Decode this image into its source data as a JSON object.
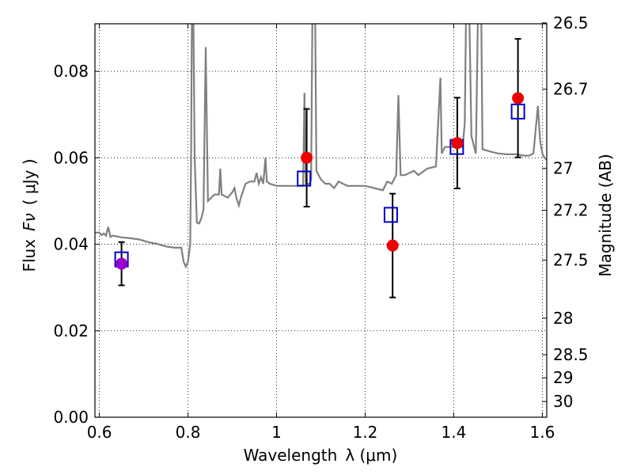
{
  "chart_data": {
    "type": "scatter",
    "xlabel_text": "Wavelength",
    "xlabel_math": "λ (μm)",
    "ylabel_text": "Flux",
    "ylabel_math": "Fν",
    "ylabel_unit": "( μJy )",
    "right_ylabel": "Magnitude (AB)",
    "xlim": [
      0.59,
      1.61
    ],
    "ylim": [
      0.0,
      0.091
    ],
    "grid": true,
    "x_ticks": [
      {
        "value": 0.6,
        "label": "0.6"
      },
      {
        "value": 0.8,
        "label": "0.8"
      },
      {
        "value": 1.0,
        "label": "1"
      },
      {
        "value": 1.2,
        "label": "1.2"
      },
      {
        "value": 1.4,
        "label": "1.4"
      },
      {
        "value": 1.6,
        "label": "1.6"
      }
    ],
    "y_ticks": [
      {
        "value": 0.0,
        "label": "0.00"
      },
      {
        "value": 0.02,
        "label": "0.02"
      },
      {
        "value": 0.04,
        "label": "0.04"
      },
      {
        "value": 0.06,
        "label": "0.06"
      },
      {
        "value": 0.08,
        "label": "0.08"
      }
    ],
    "right_ticks": [
      {
        "value": 26.5,
        "label": "26.5"
      },
      {
        "value": 26.7,
        "label": "26.7"
      },
      {
        "value": 27.0,
        "label": "27"
      },
      {
        "value": 27.2,
        "label": "27.2"
      },
      {
        "value": 27.5,
        "label": "27.5"
      },
      {
        "value": 28.0,
        "label": "28"
      },
      {
        "value": 28.5,
        "label": "28.5"
      },
      {
        "value": 29.0,
        "label": "29"
      },
      {
        "value": 30.0,
        "label": "30"
      }
    ],
    "model_spectrum": {
      "color": "#808080",
      "points": [
        [
          0.59,
          0.0427
        ],
        [
          0.6,
          0.0427
        ],
        [
          0.605,
          0.0421
        ],
        [
          0.61,
          0.0425
        ],
        [
          0.615,
          0.042
        ],
        [
          0.62,
          0.044
        ],
        [
          0.625,
          0.0417
        ],
        [
          0.63,
          0.042
        ],
        [
          0.65,
          0.0416
        ],
        [
          0.67,
          0.0414
        ],
        [
          0.69,
          0.0411
        ],
        [
          0.71,
          0.0405
        ],
        [
          0.73,
          0.0401
        ],
        [
          0.75,
          0.0395
        ],
        [
          0.77,
          0.0392
        ],
        [
          0.785,
          0.0392
        ],
        [
          0.79,
          0.036
        ],
        [
          0.795,
          0.0348
        ],
        [
          0.8,
          0.036
        ],
        [
          0.805,
          0.04
        ],
        [
          0.807,
          0.06
        ],
        [
          0.809,
          0.095
        ],
        [
          0.812,
          0.095
        ],
        [
          0.815,
          0.06
        ],
        [
          0.82,
          0.045
        ],
        [
          0.825,
          0.0448
        ],
        [
          0.83,
          0.046
        ],
        [
          0.835,
          0.048
        ],
        [
          0.84,
          0.0856
        ],
        [
          0.845,
          0.05
        ],
        [
          0.85,
          0.0505
        ],
        [
          0.86,
          0.0515
        ],
        [
          0.87,
          0.0515
        ],
        [
          0.873,
          0.0575
        ],
        [
          0.876,
          0.0515
        ],
        [
          0.89,
          0.0508
        ],
        [
          0.9,
          0.052
        ],
        [
          0.905,
          0.053
        ],
        [
          0.91,
          0.0505
        ],
        [
          0.915,
          0.049
        ],
        [
          0.92,
          0.051
        ],
        [
          0.93,
          0.054
        ],
        [
          0.94,
          0.0545
        ],
        [
          0.95,
          0.0545
        ],
        [
          0.955,
          0.0565
        ],
        [
          0.96,
          0.054
        ],
        [
          0.965,
          0.0555
        ],
        [
          0.97,
          0.054
        ],
        [
          0.975,
          0.06
        ],
        [
          0.978,
          0.0545
        ],
        [
          0.985,
          0.054
        ],
        [
          1.0,
          0.0535
        ],
        [
          1.02,
          0.0535
        ],
        [
          1.04,
          0.0535
        ],
        [
          1.06,
          0.0535
        ],
        [
          1.063,
          0.075
        ],
        [
          1.066,
          0.054
        ],
        [
          1.075,
          0.054
        ],
        [
          1.078,
          0.055
        ],
        [
          1.081,
          0.095
        ],
        [
          1.087,
          0.095
        ],
        [
          1.09,
          0.057
        ],
        [
          1.1,
          0.055
        ],
        [
          1.11,
          0.054
        ],
        [
          1.12,
          0.054
        ],
        [
          1.13,
          0.053
        ],
        [
          1.14,
          0.0545
        ],
        [
          1.15,
          0.054
        ],
        [
          1.16,
          0.0535
        ],
        [
          1.18,
          0.0535
        ],
        [
          1.2,
          0.0535
        ],
        [
          1.22,
          0.053
        ],
        [
          1.24,
          0.0525
        ],
        [
          1.25,
          0.0545
        ],
        [
          1.26,
          0.054
        ],
        [
          1.27,
          0.056
        ],
        [
          1.275,
          0.0745
        ],
        [
          1.28,
          0.056
        ],
        [
          1.29,
          0.056
        ],
        [
          1.3,
          0.0565
        ],
        [
          1.31,
          0.057
        ],
        [
          1.32,
          0.056
        ],
        [
          1.34,
          0.0575
        ],
        [
          1.36,
          0.058
        ],
        [
          1.37,
          0.0785
        ],
        [
          1.373,
          0.061
        ],
        [
          1.38,
          0.0625
        ],
        [
          1.4,
          0.0625
        ],
        [
          1.42,
          0.0625
        ],
        [
          1.425,
          0.068
        ],
        [
          1.428,
          0.095
        ],
        [
          1.435,
          0.095
        ],
        [
          1.44,
          0.065
        ],
        [
          1.45,
          0.061
        ],
        [
          1.455,
          0.095
        ],
        [
          1.462,
          0.095
        ],
        [
          1.465,
          0.062
        ],
        [
          1.48,
          0.0615
        ],
        [
          1.5,
          0.061
        ],
        [
          1.52,
          0.0608
        ],
        [
          1.54,
          0.0608
        ],
        [
          1.56,
          0.0605
        ],
        [
          1.57,
          0.0605
        ],
        [
          1.58,
          0.061
        ],
        [
          1.59,
          0.072
        ],
        [
          1.595,
          0.064
        ],
        [
          1.6,
          0.061
        ],
        [
          1.605,
          0.06
        ],
        [
          1.61,
          0.0595
        ]
      ]
    },
    "series": [
      {
        "marker": "open-square",
        "color": "#0000cc",
        "points": [
          {
            "x": 0.65,
            "y": 0.0365
          },
          {
            "x": 1.062,
            "y": 0.0552
          },
          {
            "x": 1.258,
            "y": 0.0468
          },
          {
            "x": 1.407,
            "y": 0.0625
          },
          {
            "x": 1.545,
            "y": 0.0707
          }
        ]
      },
      {
        "marker": "filled-circle",
        "color": "#ee0000",
        "points": [
          {
            "x": 0.65,
            "y": 0.0355,
            "yerr_low": 0.005,
            "yerr_high": 0.005,
            "color": "#9900cc"
          },
          {
            "x": 1.068,
            "y": 0.06,
            "yerr_low": 0.0113,
            "yerr_high": 0.0113
          },
          {
            "x": 1.262,
            "y": 0.0397,
            "yerr_low": 0.012,
            "yerr_high": 0.012
          },
          {
            "x": 1.408,
            "y": 0.0634,
            "yerr_low": 0.0105,
            "yerr_high": 0.0105
          },
          {
            "x": 1.545,
            "y": 0.0738,
            "yerr_low": 0.0137,
            "yerr_high": 0.0137
          }
        ]
      }
    ]
  }
}
